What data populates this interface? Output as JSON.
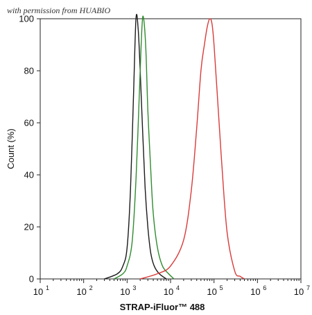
{
  "watermark": "with permission from HUABIO",
  "chart_data": {
    "type": "line",
    "title": "",
    "xlabel": "STRAP-iFluor™ 488",
    "ylabel": "Count (%)",
    "x_scale": "log",
    "xlim": [
      10,
      10000000
    ],
    "ylim": [
      0,
      100
    ],
    "x_ticks": [
      {
        "base": "10",
        "exp": "1"
      },
      {
        "base": "10",
        "exp": "2"
      },
      {
        "base": "10",
        "exp": "3"
      },
      {
        "base": "10",
        "exp": "4"
      },
      {
        "base": "10",
        "exp": "5"
      },
      {
        "base": "10",
        "exp": "6"
      },
      {
        "base": "10",
        "exp": "7"
      }
    ],
    "y_ticks": [
      "0",
      "20",
      "40",
      "60",
      "80",
      "100"
    ],
    "grid": false,
    "legend": "none",
    "series": [
      {
        "color": "#1a1a1a",
        "x": [
          300,
          600,
          800,
          1000,
          1200,
          1400,
          1600,
          1800,
          2000,
          2300,
          2600,
          3000,
          3500,
          4200,
          5500,
          8000
        ],
        "y": [
          0,
          2,
          5,
          12,
          35,
          70,
          100,
          96,
          80,
          55,
          35,
          20,
          10,
          5,
          2,
          0
        ]
      },
      {
        "color": "#2e8b2e",
        "x": [
          500,
          800,
          1000,
          1300,
          1600,
          1900,
          2200,
          2400,
          2700,
          3000,
          3500,
          4000,
          5000,
          6500,
          9000,
          12000
        ],
        "y": [
          0,
          2,
          5,
          14,
          38,
          70,
          97,
          100,
          88,
          65,
          42,
          25,
          12,
          5,
          2,
          0
        ]
      },
      {
        "color": "#d93a3a",
        "x": [
          2000,
          5000,
          10000,
          20000,
          30000,
          40000,
          50000,
          60000,
          70000,
          80000,
          90000,
          100000,
          120000,
          150000,
          200000,
          300000,
          400000,
          500000
        ],
        "y": [
          0,
          2,
          5,
          15,
          34,
          58,
          80,
          90,
          97,
          100,
          98,
          90,
          70,
          45,
          18,
          3,
          1,
          0
        ]
      }
    ]
  }
}
